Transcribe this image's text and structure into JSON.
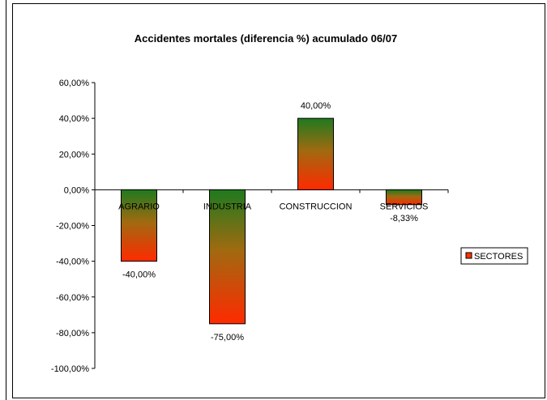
{
  "chart_data": {
    "type": "bar",
    "title": "Accidentes mortales (diferencia %) acumulado 06/07",
    "categories": [
      "AGRARIO",
      "INDUSTRIA",
      "CONSTRUCCION",
      "SERVICIOS"
    ],
    "series": [
      {
        "name": "SECTORES",
        "values": [
          -40.0,
          -75.0,
          40.0,
          -8.33
        ]
      }
    ],
    "data_labels": [
      "-40,00%",
      "-75,00%",
      "40,00%",
      "-8,33%"
    ],
    "y_ticks": [
      60,
      40,
      20,
      0,
      -20,
      -40,
      -60,
      -80,
      -100
    ],
    "y_tick_labels": [
      "60,00%",
      "40,00%",
      "20,00%",
      "0,00%",
      "-20,00%",
      "-40,00%",
      "-60,00%",
      "-80,00%",
      "-100,00%"
    ],
    "ylim": [
      -100,
      60
    ],
    "xlabel": "",
    "ylabel": "",
    "grid": false,
    "legend_position": "right",
    "colors": {
      "gradient_top": "#1f7a1f",
      "gradient_mid": "#a06a10",
      "gradient_bottom": "#ff2a00",
      "legend_swatch": "#ff3300",
      "axis": "#000000"
    }
  }
}
